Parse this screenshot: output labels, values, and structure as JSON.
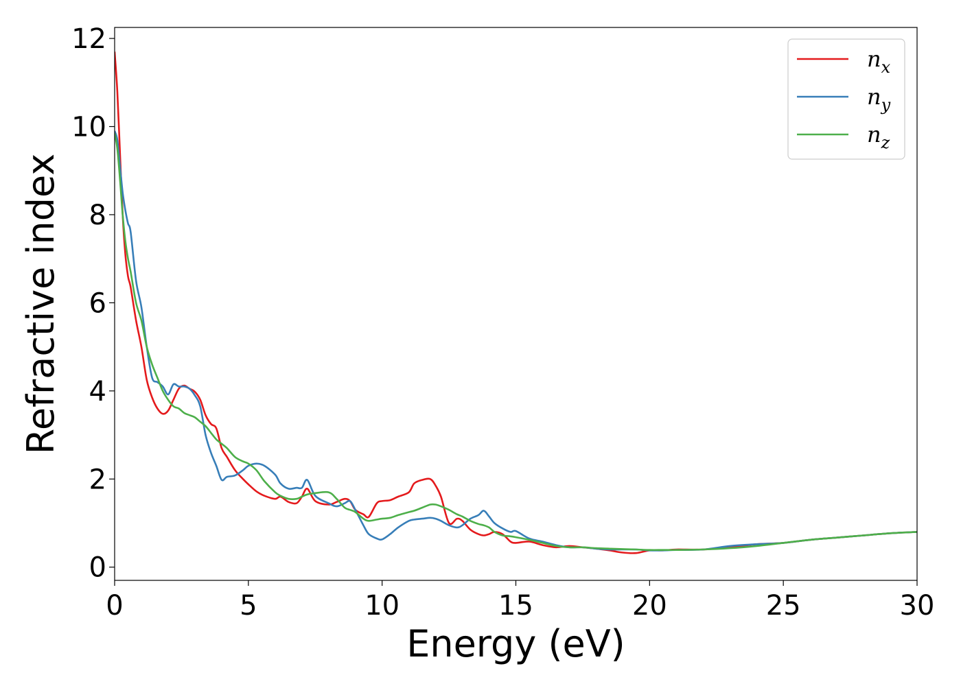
{
  "chart_data": {
    "type": "line",
    "title": "",
    "xlabel": "Energy (eV)",
    "ylabel": "Refractive index",
    "xlim": [
      0,
      30
    ],
    "ylim": [
      -0.3,
      12.25
    ],
    "xticks": [
      0,
      5,
      10,
      15,
      20,
      25,
      30
    ],
    "yticks": [
      0,
      2,
      4,
      6,
      8,
      10,
      12
    ],
    "grid": false,
    "legend_position": "top-right",
    "series": [
      {
        "name": "n",
        "subscript": "x",
        "color": "#e41a1c",
        "x": [
          0,
          0.1,
          0.2,
          0.3,
          0.4,
          0.5,
          0.6,
          0.8,
          1.0,
          1.2,
          1.4,
          1.6,
          1.8,
          2.0,
          2.2,
          2.4,
          2.6,
          2.8,
          3.0,
          3.2,
          3.4,
          3.6,
          3.8,
          4.0,
          4.2,
          4.5,
          4.8,
          5.0,
          5.3,
          5.6,
          6.0,
          6.2,
          6.5,
          6.8,
          7.0,
          7.2,
          7.5,
          8.0,
          8.3,
          8.6,
          8.8,
          9.0,
          9.3,
          9.5,
          9.8,
          10.0,
          10.3,
          10.6,
          11.0,
          11.2,
          11.5,
          11.8,
          12.0,
          12.2,
          12.5,
          12.8,
          13.0,
          13.3,
          13.6,
          13.8,
          14.0,
          14.2,
          14.5,
          14.8,
          15.0,
          15.5,
          16.0,
          16.5,
          17.0,
          17.5,
          18.0,
          18.5,
          19.0,
          19.5,
          20.0,
          20.5,
          21.0,
          22.0,
          23.0,
          24.0,
          25.0,
          26.0,
          27.0,
          28.0,
          29.0,
          30.0
        ],
        "y": [
          11.7,
          10.8,
          9.4,
          8.0,
          7.1,
          6.6,
          6.35,
          5.6,
          5.0,
          4.25,
          3.85,
          3.6,
          3.48,
          3.55,
          3.8,
          4.05,
          4.12,
          4.05,
          3.98,
          3.8,
          3.45,
          3.25,
          3.15,
          2.7,
          2.5,
          2.2,
          2.0,
          1.88,
          1.72,
          1.62,
          1.55,
          1.6,
          1.48,
          1.45,
          1.6,
          1.78,
          1.5,
          1.42,
          1.48,
          1.55,
          1.5,
          1.3,
          1.2,
          1.14,
          1.45,
          1.5,
          1.52,
          1.6,
          1.7,
          1.9,
          1.98,
          2.0,
          1.85,
          1.6,
          1.0,
          1.1,
          1.05,
          0.85,
          0.75,
          0.72,
          0.75,
          0.8,
          0.75,
          0.58,
          0.55,
          0.58,
          0.5,
          0.45,
          0.48,
          0.45,
          0.42,
          0.38,
          0.33,
          0.32,
          0.38,
          0.38,
          0.4,
          0.4,
          0.45,
          0.52,
          0.55,
          0.62,
          0.67,
          0.72,
          0.77,
          0.8
        ]
      },
      {
        "name": "n",
        "subscript": "y",
        "color": "#377eb8",
        "x": [
          0,
          0.1,
          0.2,
          0.3,
          0.4,
          0.5,
          0.6,
          0.8,
          1.0,
          1.2,
          1.4,
          1.6,
          1.8,
          2.0,
          2.2,
          2.4,
          2.6,
          2.8,
          3.0,
          3.2,
          3.4,
          3.6,
          3.8,
          4.0,
          4.2,
          4.5,
          4.8,
          5.0,
          5.3,
          5.6,
          6.0,
          6.2,
          6.5,
          6.8,
          7.0,
          7.2,
          7.5,
          8.0,
          8.3,
          8.6,
          8.8,
          9.0,
          9.3,
          9.5,
          9.8,
          10.0,
          10.3,
          10.6,
          11.0,
          11.2,
          11.5,
          11.8,
          12.0,
          12.2,
          12.5,
          12.8,
          13.0,
          13.3,
          13.6,
          13.8,
          14.0,
          14.2,
          14.5,
          14.8,
          15.0,
          15.5,
          16.0,
          16.5,
          17.0,
          17.5,
          18.0,
          18.5,
          19.0,
          19.5,
          20.0,
          20.5,
          21.0,
          22.0,
          23.0,
          24.0,
          25.0,
          26.0,
          27.0,
          28.0,
          29.0,
          30.0
        ],
        "y": [
          9.9,
          9.7,
          9.1,
          8.5,
          8.1,
          7.8,
          7.6,
          6.5,
          5.9,
          5.0,
          4.3,
          4.2,
          4.1,
          3.92,
          4.15,
          4.1,
          4.1,
          4.05,
          3.9,
          3.65,
          3.0,
          2.6,
          2.3,
          1.98,
          2.05,
          2.08,
          2.2,
          2.3,
          2.35,
          2.3,
          2.1,
          1.9,
          1.78,
          1.8,
          1.8,
          1.98,
          1.62,
          1.45,
          1.38,
          1.45,
          1.5,
          1.3,
          0.95,
          0.75,
          0.65,
          0.63,
          0.75,
          0.9,
          1.05,
          1.08,
          1.1,
          1.12,
          1.1,
          1.05,
          0.95,
          0.9,
          0.95,
          1.1,
          1.18,
          1.28,
          1.15,
          1.0,
          0.88,
          0.8,
          0.82,
          0.65,
          0.58,
          0.5,
          0.45,
          0.45,
          0.42,
          0.4,
          0.4,
          0.4,
          0.38,
          0.38,
          0.39,
          0.4,
          0.48,
          0.52,
          0.55,
          0.62,
          0.67,
          0.72,
          0.77,
          0.8
        ]
      },
      {
        "name": "n",
        "subscript": "z",
        "color": "#4daf4a",
        "x": [
          0,
          0.1,
          0.2,
          0.3,
          0.4,
          0.5,
          0.6,
          0.8,
          1.0,
          1.2,
          1.4,
          1.6,
          1.8,
          2.0,
          2.2,
          2.4,
          2.6,
          2.8,
          3.0,
          3.2,
          3.4,
          3.6,
          3.8,
          4.0,
          4.2,
          4.5,
          4.8,
          5.0,
          5.3,
          5.6,
          6.0,
          6.2,
          6.5,
          6.8,
          7.0,
          7.2,
          7.5,
          8.0,
          8.3,
          8.6,
          8.8,
          9.0,
          9.3,
          9.5,
          9.8,
          10.0,
          10.3,
          10.6,
          11.0,
          11.2,
          11.5,
          11.8,
          12.0,
          12.2,
          12.5,
          12.8,
          13.0,
          13.3,
          13.6,
          13.8,
          14.0,
          14.2,
          14.5,
          14.8,
          15.0,
          15.5,
          16.0,
          16.5,
          17.0,
          17.5,
          18.0,
          18.5,
          19.0,
          19.5,
          20.0,
          20.5,
          21.0,
          22.0,
          23.0,
          24.0,
          25.0,
          26.0,
          27.0,
          28.0,
          29.0,
          30.0
        ],
        "y": [
          9.85,
          9.5,
          8.8,
          8.0,
          7.4,
          7.0,
          6.7,
          6.0,
          5.6,
          5.0,
          4.6,
          4.3,
          4.0,
          3.8,
          3.65,
          3.6,
          3.5,
          3.45,
          3.4,
          3.3,
          3.2,
          3.05,
          2.9,
          2.8,
          2.7,
          2.5,
          2.4,
          2.35,
          2.2,
          1.95,
          1.7,
          1.62,
          1.55,
          1.55,
          1.6,
          1.65,
          1.68,
          1.7,
          1.55,
          1.35,
          1.3,
          1.25,
          1.1,
          1.05,
          1.08,
          1.1,
          1.12,
          1.18,
          1.25,
          1.28,
          1.35,
          1.42,
          1.42,
          1.38,
          1.3,
          1.2,
          1.15,
          1.05,
          0.98,
          0.95,
          0.9,
          0.8,
          0.72,
          0.7,
          0.68,
          0.62,
          0.55,
          0.48,
          0.45,
          0.45,
          0.43,
          0.42,
          0.41,
          0.4,
          0.39,
          0.39,
          0.39,
          0.4,
          0.43,
          0.48,
          0.55,
          0.62,
          0.67,
          0.72,
          0.77,
          0.8
        ]
      }
    ]
  }
}
